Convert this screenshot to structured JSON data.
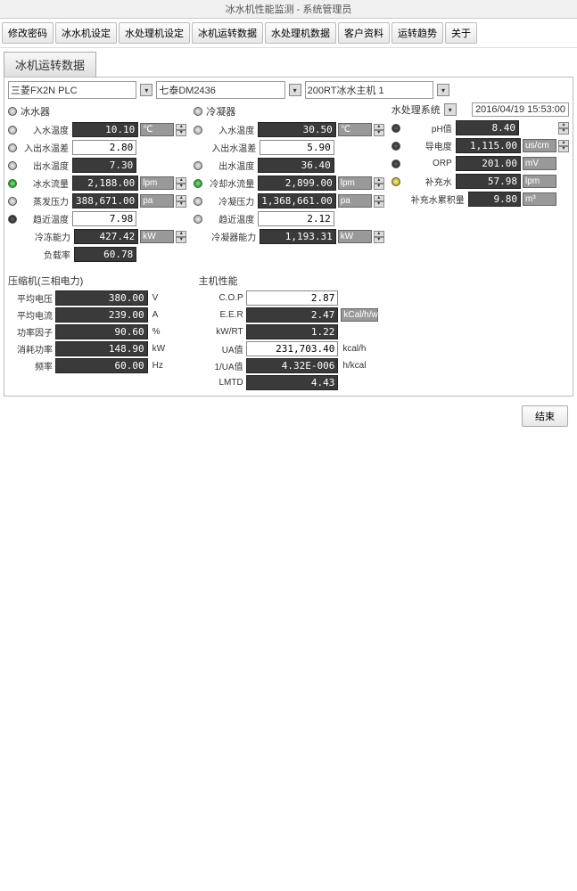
{
  "window": {
    "title": "冰水机性能监测 - 系统管理员"
  },
  "menu": {
    "items": [
      "修改密码",
      "冰水机设定",
      "水处理机设定",
      "冰机运转数据",
      "水处理机数据",
      "客户资料",
      "运转趋势",
      "关于"
    ]
  },
  "tab": {
    "label": "冰机运转数据"
  },
  "devices": {
    "d1": "三菱FX2N PLC",
    "d2": "七泰DM2436",
    "d3": "200RT冰水主机 1"
  },
  "timestamp": "2016/04/19 15:53:00",
  "col1": {
    "head": "冰水器",
    "rows": [
      {
        "ind": "off",
        "lbl": "入水温度",
        "val": "10.10",
        "unit": "℃",
        "spin": true,
        "dark": true
      },
      {
        "ind": "off",
        "lbl": "入出水温差",
        "val": "2.80",
        "unit": "",
        "spin": false,
        "dark": false
      },
      {
        "ind": "off",
        "lbl": "出水温度",
        "val": "7.30",
        "unit": "",
        "spin": false,
        "dark": true
      },
      {
        "ind": "green",
        "lbl": "冰水流量",
        "val": "2,188.00",
        "unit": "lpm",
        "spin": true,
        "dark": true
      },
      {
        "ind": "off",
        "lbl": "蒸发压力",
        "val": "388,671.00",
        "unit": "pa",
        "spin": true,
        "dark": true
      },
      {
        "ind": "dark",
        "lbl": "趋近温度",
        "val": "7.98",
        "unit": "",
        "spin": false,
        "dark": false
      },
      {
        "ind": "",
        "lbl": "冷冻能力",
        "val": "427.42",
        "unit": "kW",
        "spin": true,
        "dark": true
      },
      {
        "ind": "",
        "lbl": "负载率",
        "val": "60.78",
        "unit": "",
        "spin": false,
        "dark": true
      }
    ]
  },
  "col2": {
    "head": "冷凝器",
    "rows": [
      {
        "ind": "off",
        "lbl": "入水温度",
        "val": "30.50",
        "unit": "℃",
        "spin": true,
        "dark": true
      },
      {
        "ind": "",
        "lbl": "入出水温差",
        "val": "5.90",
        "unit": "",
        "spin": false,
        "dark": false
      },
      {
        "ind": "off",
        "lbl": "出水温度",
        "val": "36.40",
        "unit": "",
        "spin": false,
        "dark": true
      },
      {
        "ind": "green",
        "lbl": "冷却水流量",
        "val": "2,899.00",
        "unit": "lpm",
        "spin": true,
        "dark": true
      },
      {
        "ind": "off",
        "lbl": "冷凝压力",
        "val": "1,368,661.00",
        "unit": "pa",
        "spin": true,
        "dark": true
      },
      {
        "ind": "off",
        "lbl": "趋近温度",
        "val": "2.12",
        "unit": "",
        "spin": false,
        "dark": false
      },
      {
        "ind": "",
        "lbl": "冷凝器能力",
        "val": "1,193.31",
        "unit": "kW",
        "spin": true,
        "dark": true
      }
    ]
  },
  "col3": {
    "head": "水处理系统",
    "rows": [
      {
        "ind": "dark",
        "lbl": "pH值",
        "val": "8.40",
        "unit": "",
        "spin": true,
        "dark": true
      },
      {
        "ind": "dark",
        "lbl": "导电度",
        "val": "1,115.00",
        "unit": "us/cm",
        "spin": true,
        "dark": true
      },
      {
        "ind": "dark",
        "lbl": "ORP",
        "val": "201.00",
        "unit": "mV",
        "spin": false,
        "dark": true
      },
      {
        "ind": "yellow",
        "lbl": "补充水",
        "val": "57.98",
        "unit": "lpm",
        "spin": false,
        "dark": true
      },
      {
        "ind": "",
        "lbl": "补充水累积量",
        "val": "9.80",
        "unit": "m³",
        "spin": false,
        "dark": true,
        "wide": true
      }
    ]
  },
  "compressor": {
    "title": "压缩机(三相电力)",
    "rows": [
      {
        "lbl": "平均电压",
        "val": "380.00",
        "unit": "V"
      },
      {
        "lbl": "平均电流",
        "val": "239.00",
        "unit": "A"
      },
      {
        "lbl": "功率因子",
        "val": "90.60",
        "unit": "%"
      },
      {
        "lbl": "消耗功率",
        "val": "148.90",
        "unit": "kW"
      },
      {
        "lbl": "频率",
        "val": "60.00",
        "unit": "Hz"
      }
    ]
  },
  "performance": {
    "title": "主机性能",
    "rows": [
      {
        "lbl": "C.O.P",
        "val": "2.87",
        "unit": "",
        "dark": false
      },
      {
        "lbl": "E.E.R",
        "val": "2.47",
        "unit": "kCal/h/w",
        "dark": true,
        "unitbox": true
      },
      {
        "lbl": "kW/RT",
        "val": "1.22",
        "unit": "",
        "dark": true
      },
      {
        "lbl": "UA值",
        "val": "231,703.40",
        "unit": "kcal/h",
        "dark": false
      },
      {
        "lbl": "1/UA值",
        "val": "4.32E-006",
        "unit": "h/kcal",
        "dark": true
      },
      {
        "lbl": "LMTD",
        "val": "4.43",
        "unit": "",
        "dark": true
      }
    ]
  },
  "bottom": {
    "left": "",
    "right": "结束"
  }
}
